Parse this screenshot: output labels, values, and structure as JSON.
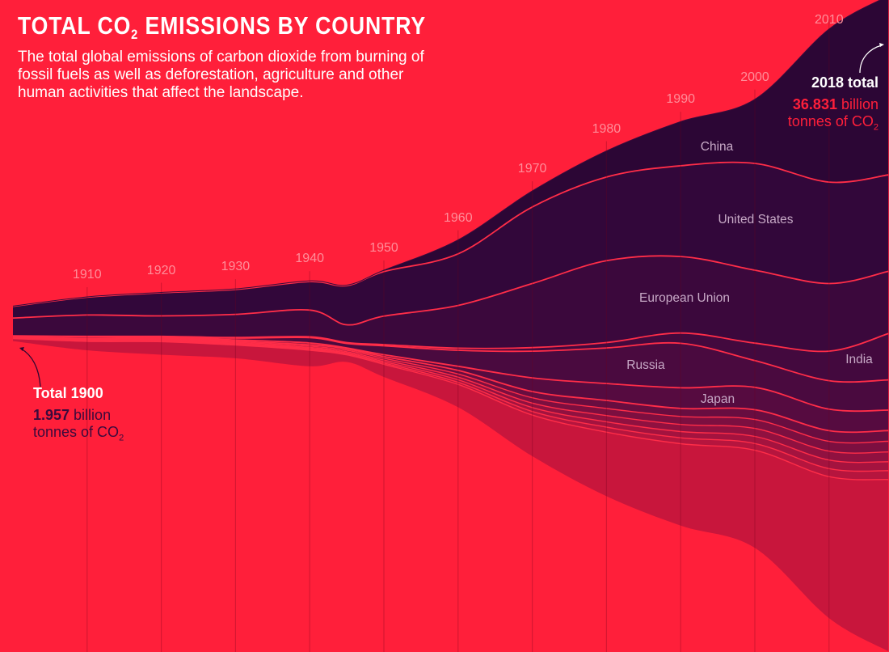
{
  "header": {
    "title_prefix": "TOTAL CO",
    "title_sub": "2",
    "title_suffix": " EMISSIONS BY COUNTRY",
    "subtitle": "The total global emissions of carbon dioxide from burning of fossil fuels as well as deforestation, agriculture and other human activities that affect the landscape."
  },
  "annotations": {
    "start": {
      "label": "Total 1900",
      "value": "1.957",
      "unit": " billion",
      "unit_line2": "tonnes of CO",
      "sub": "2"
    },
    "end": {
      "label": "2018 total",
      "value": "36.831",
      "unit": " billion",
      "unit_line2": "tonnes of CO",
      "sub": "2"
    }
  },
  "colors": {
    "background": "#ff1f3a",
    "band_line": "#ff2d48",
    "year_label": "#ff8e9a",
    "country_label": "#c7a9c6"
  },
  "chart_data": {
    "type": "area",
    "subtype": "streamgraph",
    "title": "TOTAL CO2 EMISSIONS BY COUNTRY",
    "unit": "billion tonnes of CO2",
    "years": [
      1900,
      1910,
      1920,
      1930,
      1940,
      1945,
      1950,
      1960,
      1970,
      1980,
      1990,
      2000,
      2010,
      2018
    ],
    "year_ticks": [
      "1910",
      "1920",
      "1930",
      "1940",
      "1950",
      "1960",
      "1970",
      "1980",
      "1990",
      "2000",
      "2010"
    ],
    "totals": {
      "1900": 1.957,
      "2018": 36.831
    },
    "series": [
      {
        "name": "China",
        "color": "#2c0635",
        "values": [
          0.01,
          0.02,
          0.02,
          0.03,
          0.04,
          0.03,
          0.08,
          0.78,
          0.9,
          1.47,
          2.48,
          3.6,
          8.6,
          10.06
        ]
      },
      {
        "name": "United States",
        "color": "#32073a",
        "values": [
          0.66,
          1.0,
          1.3,
          1.4,
          1.6,
          2.2,
          2.5,
          2.9,
          4.3,
          4.7,
          5.1,
          6.0,
          5.7,
          5.42
        ]
      },
      {
        "name": "European Union",
        "color": "#3b083c",
        "values": [
          1.0,
          1.2,
          1.15,
          1.3,
          1.5,
          1.0,
          1.6,
          2.4,
          3.6,
          4.6,
          4.3,
          4.1,
          3.8,
          3.5
        ]
      },
      {
        "name": "India",
        "color": "#43093e",
        "values": [
          0.01,
          0.02,
          0.03,
          0.04,
          0.05,
          0.05,
          0.07,
          0.12,
          0.2,
          0.3,
          0.58,
          0.98,
          1.66,
          2.6
        ]
      },
      {
        "name": "Russia",
        "color": "#4a0a3f",
        "values": [
          0.05,
          0.09,
          0.04,
          0.1,
          0.3,
          0.25,
          0.5,
          0.9,
          1.5,
          2.0,
          2.5,
          1.5,
          1.6,
          1.7
        ]
      },
      {
        "name": "Japan",
        "color": "#560b40",
        "values": [
          0.02,
          0.04,
          0.05,
          0.07,
          0.1,
          0.05,
          0.1,
          0.23,
          0.77,
          0.95,
          1.16,
          1.26,
          1.21,
          1.15
        ]
      },
      {
        "name": "",
        "color": "#680d40",
        "values": [
          0.02,
          0.04,
          0.05,
          0.06,
          0.08,
          0.08,
          0.1,
          0.2,
          0.35,
          0.45,
          0.45,
          0.55,
          0.6,
          0.6
        ]
      },
      {
        "name": "",
        "color": "#7c0f40",
        "values": [
          0.02,
          0.03,
          0.04,
          0.05,
          0.07,
          0.08,
          0.1,
          0.18,
          0.3,
          0.4,
          0.45,
          0.5,
          0.55,
          0.6
        ]
      },
      {
        "name": "",
        "color": "#901140",
        "values": [
          0.01,
          0.02,
          0.03,
          0.04,
          0.06,
          0.07,
          0.09,
          0.15,
          0.25,
          0.35,
          0.4,
          0.45,
          0.5,
          0.55
        ]
      },
      {
        "name": "",
        "color": "#a4133f",
        "values": [
          0.01,
          0.02,
          0.03,
          0.04,
          0.05,
          0.06,
          0.08,
          0.14,
          0.22,
          0.3,
          0.35,
          0.4,
          0.48,
          0.5
        ]
      },
      {
        "name": "",
        "color": "#b6153e",
        "values": [
          0.01,
          0.02,
          0.03,
          0.03,
          0.05,
          0.05,
          0.07,
          0.12,
          0.2,
          0.28,
          0.33,
          0.38,
          0.45,
          0.5
        ]
      },
      {
        "name": "",
        "color": "#c8163c",
        "values": [
          0.14,
          0.5,
          0.73,
          0.74,
          0.9,
          0.4,
          0.71,
          1.28,
          2.31,
          3.6,
          4.6,
          5.48,
          7.95,
          9.65
        ]
      }
    ]
  }
}
